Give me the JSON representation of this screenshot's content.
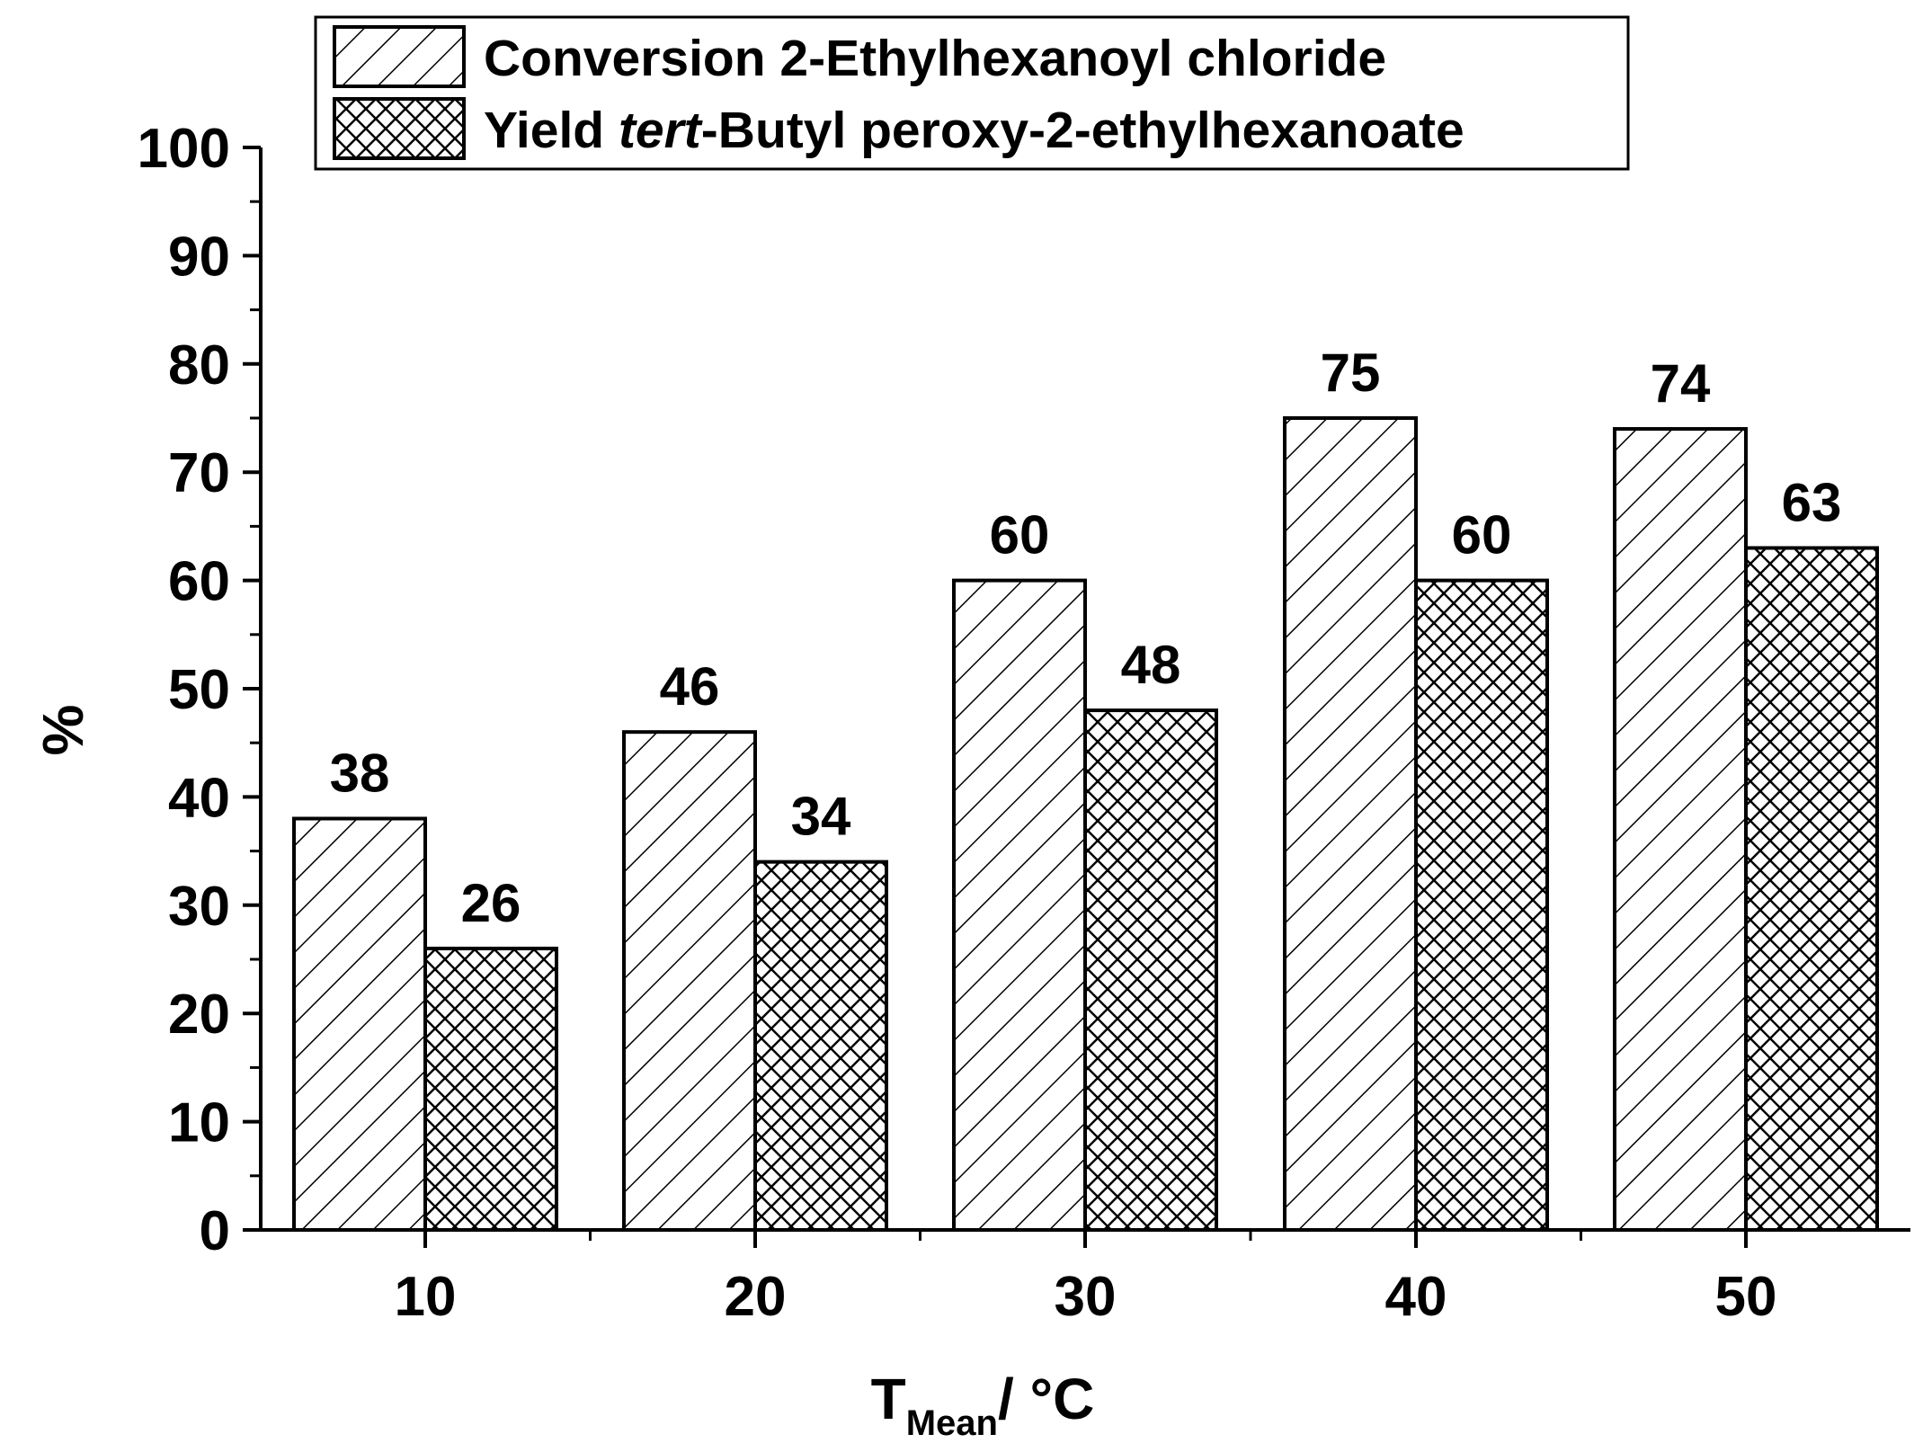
{
  "chart_data": {
    "type": "bar",
    "categories": [
      "10",
      "20",
      "30",
      "40",
      "50"
    ],
    "series": [
      {
        "name": "Conversion 2-Ethylhexanoyl chloride",
        "values": [
          38,
          46,
          60,
          75,
          74
        ],
        "pattern": "diagonal-hatch"
      },
      {
        "name_parts": [
          "Yield ",
          "tert",
          "-Butyl peroxy-2-ethylhexanoate"
        ],
        "values": [
          26,
          34,
          48,
          60,
          63
        ],
        "pattern": "cross-hatch"
      }
    ],
    "xlabel": {
      "main": "T",
      "subscript": "Mean",
      "suffix": "/ °C"
    },
    "ylabel": "%",
    "ylim": [
      0,
      100
    ],
    "yticks": [
      0,
      10,
      20,
      30,
      40,
      50,
      60,
      70,
      80,
      90,
      100
    ],
    "grid": false,
    "legend_position": "top",
    "data_labels": true
  }
}
